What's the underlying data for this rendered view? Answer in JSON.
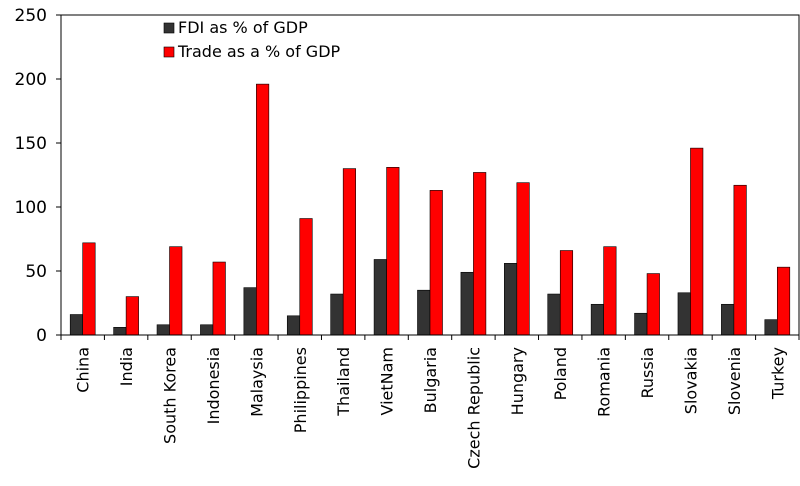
{
  "chart_data": {
    "type": "bar",
    "title": "",
    "xlabel": "",
    "ylabel": "",
    "ylim": [
      0,
      250
    ],
    "yticks": [
      0,
      50,
      100,
      150,
      200,
      250
    ],
    "grid": false,
    "legend_position": "top-left",
    "categories": [
      "China",
      "India",
      "South Korea",
      "Indonesia",
      "Malaysia",
      "Philippines",
      "Thailand",
      "VietNam",
      "Bulgaria",
      "Czech Republic",
      "Hungary",
      "Poland",
      "Romania",
      "Russia",
      "Slovakia",
      "Slovenia",
      "Turkey"
    ],
    "series": [
      {
        "name": "FDI as % of GDP",
        "color": "#333333",
        "values": [
          16,
          6,
          8,
          8,
          37,
          15,
          32,
          59,
          35,
          49,
          56,
          32,
          24,
          17,
          33,
          24,
          12
        ]
      },
      {
        "name": "Trade as a % of GDP",
        "color": "#ff0000",
        "values": [
          72,
          30,
          69,
          57,
          196,
          91,
          130,
          131,
          113,
          127,
          119,
          66,
          69,
          48,
          146,
          117,
          53
        ]
      }
    ]
  }
}
